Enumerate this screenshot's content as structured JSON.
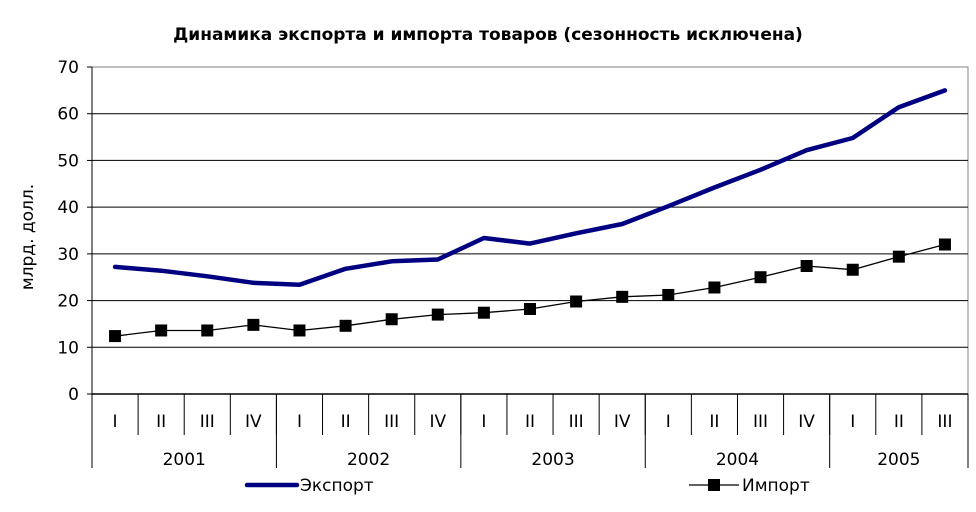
{
  "chart_data": {
    "type": "line",
    "title": "Динамика экспорта и импорта товаров (сезонность исключена)",
    "ylabel": "млрд. долл.",
    "xlabel": "",
    "ylim": [
      0,
      70
    ],
    "yticks": [
      "0",
      "10",
      "20",
      "30",
      "40",
      "50",
      "60",
      "70"
    ],
    "grid": true,
    "legend_position": "bottom",
    "categories": [
      "I",
      "II",
      "III",
      "IV",
      "I",
      "II",
      "III",
      "IV",
      "I",
      "II",
      "III",
      "IV",
      "I",
      "II",
      "III",
      "IV",
      "I",
      "II",
      "III"
    ],
    "years": [
      {
        "label": "2001",
        "quarters": 4
      },
      {
        "label": "2002",
        "quarters": 4
      },
      {
        "label": "2003",
        "quarters": 4
      },
      {
        "label": "2004",
        "quarters": 4
      },
      {
        "label": "2005",
        "quarters": 3
      }
    ],
    "series": [
      {
        "name": "Экспорт",
        "color": "#000080",
        "marker": "none",
        "values": [
          27.2,
          26.4,
          25.2,
          23.8,
          23.4,
          26.8,
          28.4,
          28.8,
          33.4,
          32.2,
          34.4,
          36.4,
          40.2,
          44.2,
          48.0,
          52.2,
          54.8,
          61.4,
          65.0
        ]
      },
      {
        "name": "Импорт",
        "color": "#000000",
        "marker": "square",
        "values": [
          12.4,
          13.6,
          13.6,
          14.8,
          13.6,
          14.6,
          16.0,
          17.0,
          17.4,
          18.2,
          19.8,
          20.8,
          21.2,
          22.8,
          25.0,
          27.4,
          26.6,
          29.4,
          32.0
        ]
      }
    ]
  }
}
